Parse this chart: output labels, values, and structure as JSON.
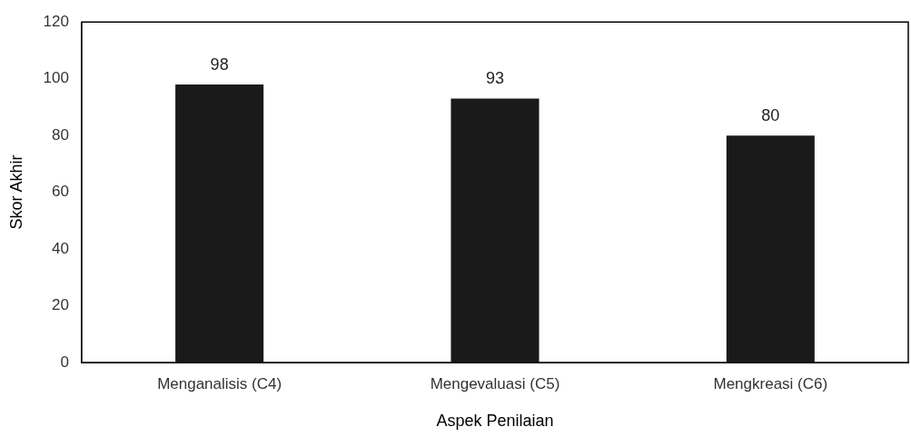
{
  "chart_data": {
    "type": "bar",
    "xlabel": "Aspek Penilaian",
    "ylabel": "Skor Akhir",
    "categories": [
      "Menganalisis (C4)",
      "Mengevaluasi (C5)",
      "Mengkreasi (C6)"
    ],
    "values": [
      98,
      93,
      80
    ],
    "color": "#1a1a1a",
    "ylim": [
      0,
      120
    ],
    "yticks": [
      0,
      20,
      40,
      60,
      80,
      100,
      120
    ],
    "data_labels": true
  }
}
